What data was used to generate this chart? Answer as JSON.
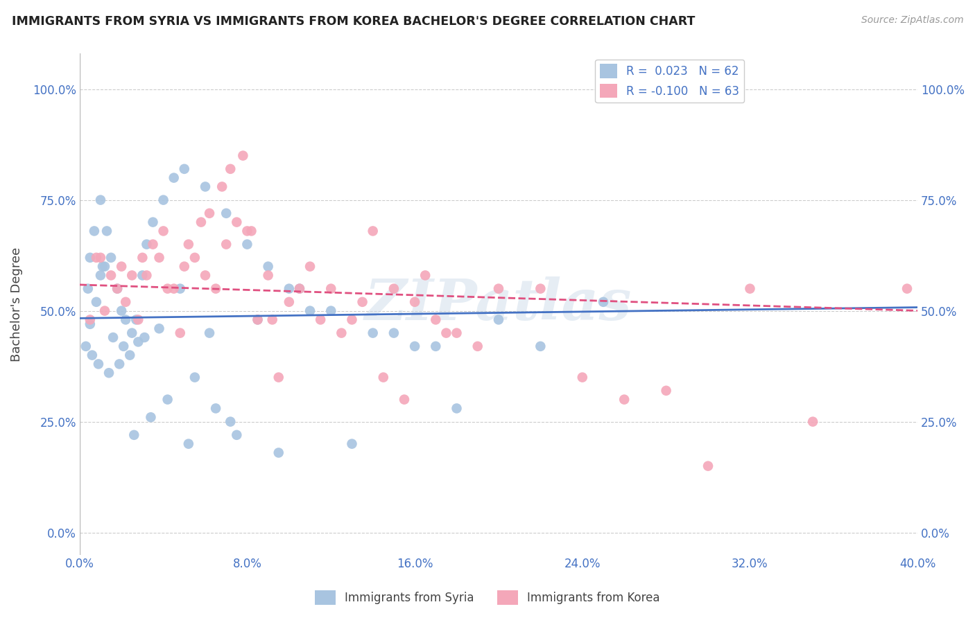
{
  "title": "IMMIGRANTS FROM SYRIA VS IMMIGRANTS FROM KOREA BACHELOR'S DEGREE CORRELATION CHART",
  "source": "Source: ZipAtlas.com",
  "ylabel": "Bachelor's Degree",
  "ytick_labels": [
    "0.0%",
    "25.0%",
    "50.0%",
    "75.0%",
    "100.0%"
  ],
  "ytick_values": [
    0,
    25,
    50,
    75,
    100
  ],
  "xtick_values": [
    0,
    8,
    16,
    24,
    32,
    40
  ],
  "xlim": [
    0,
    40
  ],
  "ylim": [
    -5,
    108
  ],
  "r_syria": 0.023,
  "n_syria": 62,
  "r_korea": -0.1,
  "n_korea": 63,
  "syria_color": "#a8c4e0",
  "korea_color": "#f4a7b9",
  "syria_line_color": "#4472c4",
  "korea_line_color": "#e05080",
  "watermark": "ZIPatlas",
  "legend_label_syria": "Immigrants from Syria",
  "legend_label_korea": "Immigrants from Korea",
  "syria_x": [
    0.3,
    0.4,
    0.5,
    0.5,
    0.6,
    0.7,
    0.8,
    0.9,
    1.0,
    1.0,
    1.1,
    1.2,
    1.3,
    1.4,
    1.5,
    1.6,
    1.8,
    1.9,
    2.0,
    2.1,
    2.2,
    2.4,
    2.5,
    2.6,
    2.7,
    2.8,
    3.0,
    3.1,
    3.2,
    3.4,
    3.5,
    3.8,
    4.0,
    4.2,
    4.5,
    4.8,
    5.0,
    5.2,
    5.5,
    6.0,
    6.2,
    6.5,
    7.0,
    7.2,
    7.5,
    8.0,
    8.5,
    9.0,
    9.5,
    10.0,
    10.5,
    11.0,
    12.0,
    13.0,
    14.0,
    15.0,
    16.0,
    17.0,
    18.0,
    20.0,
    22.0,
    25.0
  ],
  "syria_y": [
    42,
    55,
    47,
    62,
    40,
    68,
    52,
    38,
    58,
    75,
    60,
    60,
    68,
    36,
    62,
    44,
    55,
    38,
    50,
    42,
    48,
    40,
    45,
    22,
    48,
    43,
    58,
    44,
    65,
    26,
    70,
    46,
    75,
    30,
    80,
    55,
    82,
    20,
    35,
    78,
    45,
    28,
    72,
    25,
    22,
    65,
    48,
    60,
    18,
    55,
    55,
    50,
    50,
    20,
    45,
    45,
    42,
    42,
    28,
    48,
    42,
    52
  ],
  "korea_x": [
    0.5,
    0.8,
    1.0,
    1.2,
    1.5,
    1.8,
    2.0,
    2.2,
    2.5,
    2.8,
    3.0,
    3.2,
    3.5,
    3.8,
    4.0,
    4.2,
    4.5,
    4.8,
    5.0,
    5.2,
    5.5,
    5.8,
    6.0,
    6.2,
    6.5,
    6.8,
    7.0,
    7.2,
    7.5,
    7.8,
    8.0,
    8.2,
    8.5,
    9.0,
    9.2,
    9.5,
    10.0,
    10.5,
    11.0,
    11.5,
    12.0,
    12.5,
    13.0,
    13.5,
    14.0,
    14.5,
    15.0,
    15.5,
    16.0,
    16.5,
    17.0,
    17.5,
    18.0,
    19.0,
    20.0,
    22.0,
    24.0,
    26.0,
    28.0,
    30.0,
    32.0,
    35.0,
    39.5
  ],
  "korea_y": [
    48,
    62,
    62,
    50,
    58,
    55,
    60,
    52,
    58,
    48,
    62,
    58,
    65,
    62,
    68,
    55,
    55,
    45,
    60,
    65,
    62,
    70,
    58,
    72,
    55,
    78,
    65,
    82,
    70,
    85,
    68,
    68,
    48,
    58,
    48,
    35,
    52,
    55,
    60,
    48,
    55,
    45,
    48,
    52,
    68,
    35,
    55,
    30,
    52,
    58,
    48,
    45,
    45,
    42,
    55,
    55,
    35,
    30,
    32,
    15,
    55,
    25,
    55
  ]
}
